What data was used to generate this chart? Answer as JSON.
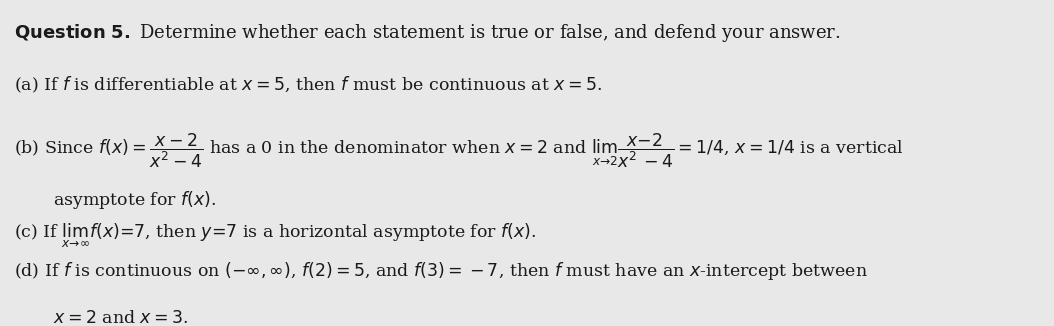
{
  "background_color": "#e8e8e8",
  "title_bold": "Question 5.",
  "title_regular": " Determine whether each statement is true or false, and defend your answer.",
  "line_a": "(a) If $f$ is differentiable at $x=5$, then $f$ must be continuous at $x=5$.",
  "line_b1_left": "(b) Since $f(x) = \\dfrac{x-2}{x^2-4}$ has a 0 in the denominator when $x=2$ and $\\lim_{x \\to 2} \\dfrac{x-2}{x^2-4} = 1/4$, $x = 1/4$ is a vertical",
  "line_b2": "    asymptote for $f(x)$.",
  "line_c": "(c) If $\\lim_{x \\to \\infty} f(x) = 7$, then $y = 7$ is a horizontal asymptote for $f(x)$.",
  "line_d1": "(d) If $f$ is continuous on $(-\\infty, \\infty)$, $f(2) = 5$, and $f(3) = -7$, then $f$ must have an $x$-intercept between",
  "line_d2": "    $x = 2$ and $x = 3$.",
  "font_size_title": 13,
  "font_size_body": 12.5,
  "text_color": "#1a1a1a"
}
